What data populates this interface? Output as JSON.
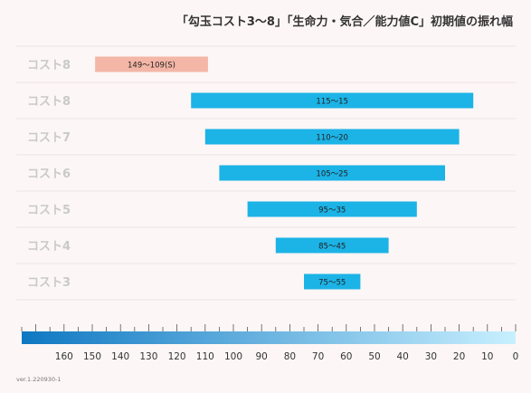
{
  "chart_data": {
    "type": "bar",
    "orientation": "horizontal-range",
    "title": "「勾玉コスト3〜8」「生命力・気合／能力値C」初期値の振れ幅",
    "rows": [
      {
        "label": "コスト8",
        "start": 149,
        "end": 109,
        "text": "149〜109(S)",
        "color": "#f4b6a6",
        "muted": true
      },
      {
        "label": "コスト8",
        "start": 115,
        "end": 15,
        "text": "115〜15",
        "color": "#1cb3e6",
        "muted": false
      },
      {
        "label": "コスト7",
        "start": 110,
        "end": 20,
        "text": "110〜20",
        "color": "#1cb3e6",
        "muted": false
      },
      {
        "label": "コスト6",
        "start": 105,
        "end": 25,
        "text": "105〜25",
        "color": "#1cb3e6",
        "muted": false
      },
      {
        "label": "コスト5",
        "start": 95,
        "end": 35,
        "text": "95〜35",
        "color": "#1cb3e6",
        "muted": false
      },
      {
        "label": "コスト4",
        "start": 85,
        "end": 45,
        "text": "85〜45",
        "color": "#1cb3e6",
        "muted": false
      },
      {
        "label": "コスト3",
        "start": 75,
        "end": 55,
        "text": "75〜55",
        "color": "#1cb3e6",
        "muted": false
      }
    ],
    "x_axis": {
      "min": 0,
      "max": 175,
      "reversed": true,
      "ticks": [
        160,
        150,
        140,
        130,
        120,
        110,
        100,
        90,
        80,
        70,
        60,
        50,
        40,
        30,
        20,
        10,
        0
      ],
      "gradient": [
        "#0f78c2",
        "#c8f0ff"
      ]
    },
    "grid": true,
    "legend": "none"
  },
  "footer": {
    "version": "ver.1.220930-1"
  },
  "colors": {
    "background": "#fdf6f6",
    "row_label": "#c9c9c9",
    "bar": "#1cb3e6",
    "bar_muted": "#f4b6a6",
    "grid": "#ede4e4"
  }
}
